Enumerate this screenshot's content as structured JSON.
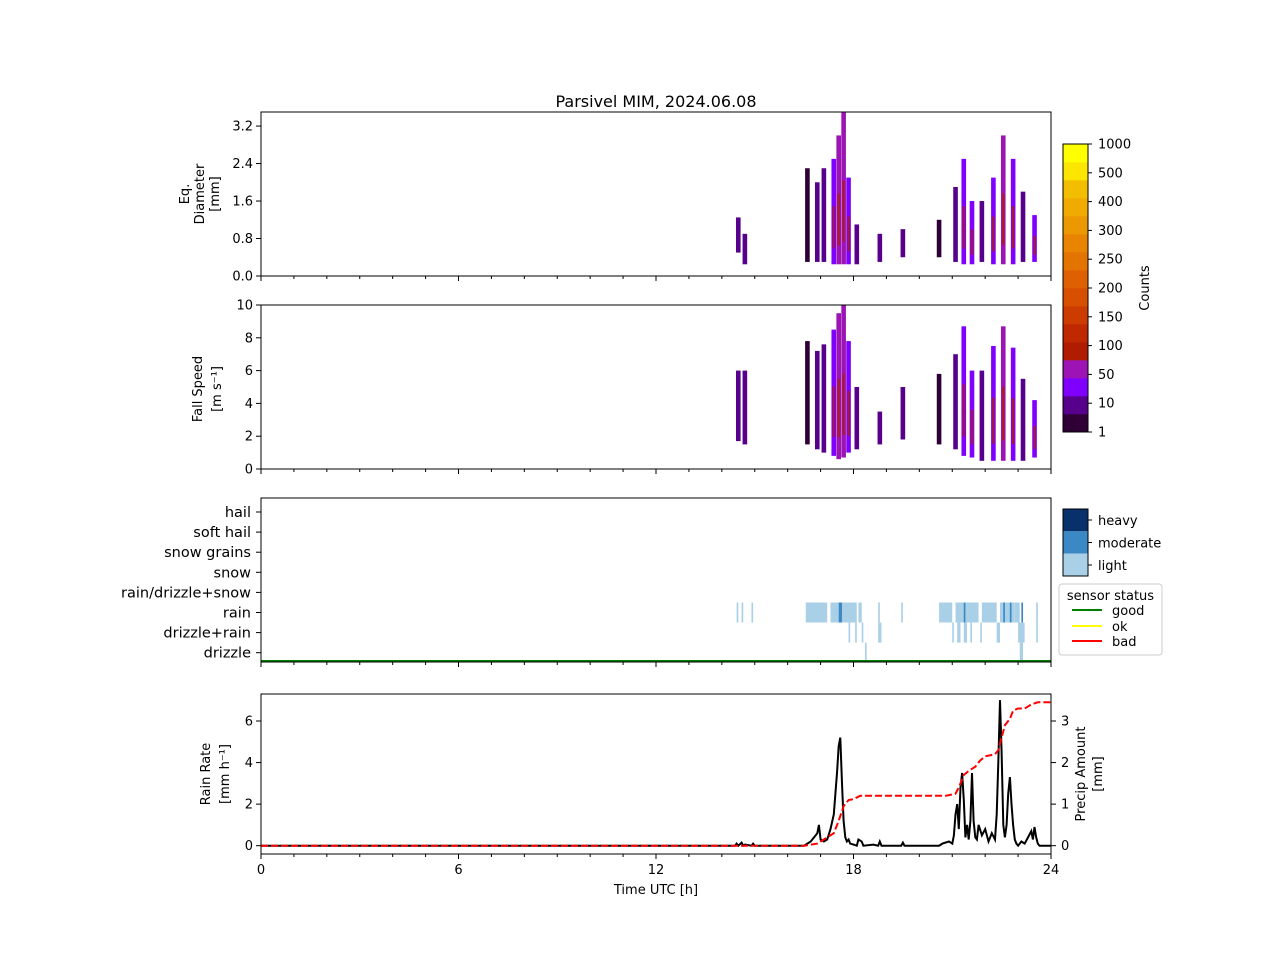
{
  "title": "Parsivel MIM, 2024.06.08",
  "time_axis": {
    "label": "Time UTC [h]",
    "ticks": [
      "0",
      "6",
      "12",
      "18",
      "24"
    ],
    "range": [
      0,
      24
    ]
  },
  "panels": {
    "diameter": {
      "ylabel_lines": [
        "Eq.",
        "Diameter",
        "[mm]"
      ],
      "ticks": [
        "0.0",
        "0.8",
        "1.6",
        "2.4",
        "3.2"
      ],
      "ylim": [
        0,
        3.5
      ]
    },
    "fallspeed": {
      "ylabel_lines": [
        "Fall Speed",
        "[m s⁻¹]"
      ],
      "ticks": [
        "0",
        "2",
        "4",
        "6",
        "8",
        "10"
      ],
      "ylim": [
        0,
        10
      ]
    },
    "type": {
      "categories": [
        "hail",
        "soft hail",
        "snow grains",
        "snow",
        "rain/drizzle+snow",
        "rain",
        "drizzle+rain",
        "drizzle"
      ]
    },
    "rain": {
      "ylabel_lines": [
        "Rain Rate",
        "[mm h⁻¹]"
      ],
      "ticks": [
        "0",
        "2",
        "4",
        "6"
      ],
      "ylim": [
        -0.4,
        7.3
      ],
      "y2label_lines": [
        "Precip Amount",
        "[mm]"
      ],
      "y2ticks": [
        "0",
        "1",
        "2",
        "3"
      ],
      "y2lim": [
        -0.2,
        3.65
      ]
    }
  },
  "colorbar_counts": {
    "label": "Counts",
    "tick_labels": [
      "1",
      "10",
      "50",
      "100",
      "150",
      "200",
      "250",
      "300",
      "400",
      "500",
      "1000"
    ]
  },
  "intensity": {
    "labels": [
      "heavy",
      "moderate",
      "light"
    ],
    "colors": [
      "#08306b",
      "#3a88c4",
      "#a9d0e7"
    ]
  },
  "sensor_status": {
    "title": "sensor status",
    "items": [
      {
        "label": "good",
        "color": "#008000"
      },
      {
        "label": "ok",
        "color": "#ffff00"
      },
      {
        "label": "bad",
        "color": "#ff0000"
      }
    ]
  },
  "colors": {
    "counts_scale": [
      "#2e0036",
      "#57008c",
      "#8000ff",
      "#9c14b4",
      "#b01c00",
      "#c02800",
      "#cc3c00",
      "#d65000",
      "#de6000",
      "#e47400",
      "#e88400",
      "#ec9800",
      "#f0aa00",
      "#f4be00",
      "#fce600",
      "#ffff00"
    ],
    "rain_rate": "#000000",
    "precip_amount": "#ff0000",
    "status_line": "#008000"
  },
  "chart_data": [
    {
      "type": "heatmap",
      "name": "diameter-histogram",
      "x_unit": "h",
      "ylabel": "Eq. Diameter [mm]",
      "columns": [
        {
          "x": 14.5,
          "lo": 0.5,
          "hi": 1.25,
          "c": 1
        },
        {
          "x": 14.7,
          "lo": 0.25,
          "hi": 0.9,
          "c": 1
        },
        {
          "x": 16.6,
          "lo": 0.3,
          "hi": 2.3,
          "c": 0
        },
        {
          "x": 16.9,
          "lo": 0.3,
          "hi": 2.0,
          "c": 1
        },
        {
          "x": 17.1,
          "lo": 0.3,
          "hi": 2.3,
          "c": 1
        },
        {
          "x": 17.4,
          "lo": 0.25,
          "hi": 2.5,
          "c": 2
        },
        {
          "x": 17.55,
          "lo": 0.25,
          "hi": 3.0,
          "c": 3
        },
        {
          "x": 17.7,
          "lo": 0.25,
          "hi": 3.5,
          "c": 3
        },
        {
          "x": 17.85,
          "lo": 0.25,
          "hi": 2.1,
          "c": 2
        },
        {
          "x": 18.1,
          "lo": 0.25,
          "hi": 1.1,
          "c": 1
        },
        {
          "x": 18.8,
          "lo": 0.3,
          "hi": 0.9,
          "c": 1
        },
        {
          "x": 19.5,
          "lo": 0.4,
          "hi": 1.0,
          "c": 1
        },
        {
          "x": 20.6,
          "lo": 0.4,
          "hi": 1.2,
          "c": 0
        },
        {
          "x": 21.1,
          "lo": 0.3,
          "hi": 1.9,
          "c": 1
        },
        {
          "x": 21.35,
          "lo": 0.25,
          "hi": 2.5,
          "c": 2
        },
        {
          "x": 21.6,
          "lo": 0.25,
          "hi": 1.6,
          "c": 2
        },
        {
          "x": 21.9,
          "lo": 0.3,
          "hi": 1.6,
          "c": 1
        },
        {
          "x": 22.25,
          "lo": 0.25,
          "hi": 2.1,
          "c": 2
        },
        {
          "x": 22.55,
          "lo": 0.25,
          "hi": 3.0,
          "c": 3
        },
        {
          "x": 22.85,
          "lo": 0.25,
          "hi": 2.5,
          "c": 2
        },
        {
          "x": 23.15,
          "lo": 0.3,
          "hi": 1.8,
          "c": 1
        },
        {
          "x": 23.5,
          "lo": 0.3,
          "hi": 1.3,
          "c": 2
        }
      ]
    },
    {
      "type": "heatmap",
      "name": "fallspeed-histogram",
      "x_unit": "h",
      "ylabel": "Fall Speed [m s-1]",
      "columns": [
        {
          "x": 14.5,
          "lo": 1.7,
          "hi": 6.0,
          "c": 1
        },
        {
          "x": 14.7,
          "lo": 1.5,
          "hi": 6.0,
          "c": 1
        },
        {
          "x": 16.6,
          "lo": 1.5,
          "hi": 7.8,
          "c": 0
        },
        {
          "x": 16.9,
          "lo": 1.2,
          "hi": 7.2,
          "c": 1
        },
        {
          "x": 17.1,
          "lo": 1.0,
          "hi": 7.6,
          "c": 1
        },
        {
          "x": 17.4,
          "lo": 0.8,
          "hi": 8.5,
          "c": 2
        },
        {
          "x": 17.55,
          "lo": 0.6,
          "hi": 9.5,
          "c": 3
        },
        {
          "x": 17.7,
          "lo": 0.7,
          "hi": 10.0,
          "c": 3
        },
        {
          "x": 17.85,
          "lo": 1.0,
          "hi": 7.8,
          "c": 2
        },
        {
          "x": 18.1,
          "lo": 1.2,
          "hi": 5.0,
          "c": 1
        },
        {
          "x": 18.8,
          "lo": 1.5,
          "hi": 3.5,
          "c": 1
        },
        {
          "x": 19.5,
          "lo": 1.8,
          "hi": 5.0,
          "c": 1
        },
        {
          "x": 20.6,
          "lo": 1.5,
          "hi": 5.8,
          "c": 0
        },
        {
          "x": 21.1,
          "lo": 1.2,
          "hi": 7.0,
          "c": 1
        },
        {
          "x": 21.35,
          "lo": 0.8,
          "hi": 8.7,
          "c": 2
        },
        {
          "x": 21.6,
          "lo": 0.7,
          "hi": 6.0,
          "c": 2
        },
        {
          "x": 21.9,
          "lo": 0.5,
          "hi": 6.0,
          "c": 1
        },
        {
          "x": 22.25,
          "lo": 0.5,
          "hi": 7.5,
          "c": 2
        },
        {
          "x": 22.55,
          "lo": 0.5,
          "hi": 8.7,
          "c": 3
        },
        {
          "x": 22.85,
          "lo": 0.5,
          "hi": 7.4,
          "c": 2
        },
        {
          "x": 23.15,
          "lo": 0.5,
          "hi": 5.5,
          "c": 1
        },
        {
          "x": 23.5,
          "lo": 0.7,
          "hi": 4.2,
          "c": 2
        }
      ]
    },
    {
      "type": "heatmap",
      "name": "precip-type",
      "x_unit": "h",
      "segments": [
        {
          "cat": "rain",
          "start": 14.45,
          "end": 14.5,
          "level": "light"
        },
        {
          "cat": "rain",
          "start": 14.6,
          "end": 14.65,
          "level": "light"
        },
        {
          "cat": "rain",
          "start": 14.9,
          "end": 14.95,
          "level": "light"
        },
        {
          "cat": "rain",
          "start": 16.55,
          "end": 17.2,
          "level": "light"
        },
        {
          "cat": "rain",
          "start": 17.3,
          "end": 17.55,
          "level": "light"
        },
        {
          "cat": "rain",
          "start": 17.55,
          "end": 17.65,
          "level": "moderate"
        },
        {
          "cat": "rain",
          "start": 17.65,
          "end": 18.1,
          "level": "light"
        },
        {
          "cat": "rain",
          "start": 18.15,
          "end": 18.25,
          "level": "light"
        },
        {
          "cat": "rain",
          "start": 18.75,
          "end": 18.8,
          "level": "light"
        },
        {
          "cat": "rain",
          "start": 19.45,
          "end": 19.5,
          "level": "light"
        },
        {
          "cat": "rain",
          "start": 20.6,
          "end": 21.0,
          "level": "light"
        },
        {
          "cat": "rain",
          "start": 21.1,
          "end": 21.8,
          "level": "light"
        },
        {
          "cat": "rain",
          "start": 21.35,
          "end": 21.4,
          "level": "moderate"
        },
        {
          "cat": "rain",
          "start": 21.9,
          "end": 22.35,
          "level": "light"
        },
        {
          "cat": "rain",
          "start": 22.45,
          "end": 22.9,
          "level": "light"
        },
        {
          "cat": "rain",
          "start": 22.55,
          "end": 22.6,
          "level": "moderate"
        },
        {
          "cat": "rain",
          "start": 22.75,
          "end": 22.8,
          "level": "moderate"
        },
        {
          "cat": "rain",
          "start": 22.9,
          "end": 23.05,
          "level": "light"
        },
        {
          "cat": "rain",
          "start": 23.1,
          "end": 23.15,
          "level": "moderate"
        },
        {
          "cat": "rain",
          "start": 23.55,
          "end": 23.6,
          "level": "light"
        },
        {
          "cat": "drizzle+rain",
          "start": 17.85,
          "end": 17.9,
          "level": "light"
        },
        {
          "cat": "drizzle+rain",
          "start": 18.05,
          "end": 18.1,
          "level": "light"
        },
        {
          "cat": "drizzle+rain",
          "start": 18.25,
          "end": 18.3,
          "level": "light"
        },
        {
          "cat": "drizzle+rain",
          "start": 18.75,
          "end": 18.85,
          "level": "light"
        },
        {
          "cat": "drizzle+rain",
          "start": 21.0,
          "end": 21.05,
          "level": "light"
        },
        {
          "cat": "drizzle+rain",
          "start": 21.15,
          "end": 21.25,
          "level": "light"
        },
        {
          "cat": "drizzle+rain",
          "start": 21.35,
          "end": 21.45,
          "level": "light"
        },
        {
          "cat": "drizzle+rain",
          "start": 21.55,
          "end": 21.6,
          "level": "light"
        },
        {
          "cat": "drizzle+rain",
          "start": 21.85,
          "end": 21.9,
          "level": "light"
        },
        {
          "cat": "drizzle+rain",
          "start": 22.35,
          "end": 22.45,
          "level": "light"
        },
        {
          "cat": "drizzle+rain",
          "start": 23.0,
          "end": 23.2,
          "level": "light"
        },
        {
          "cat": "drizzle+rain",
          "start": 23.55,
          "end": 23.6,
          "level": "light"
        },
        {
          "cat": "drizzle",
          "start": 18.35,
          "end": 18.4,
          "level": "light"
        },
        {
          "cat": "drizzle",
          "start": 23.05,
          "end": 23.15,
          "level": "light"
        }
      ],
      "sensor_status_series": {
        "start": 0,
        "end": 24,
        "status": "good"
      }
    },
    {
      "type": "line",
      "name": "rain-rate",
      "series": [
        {
          "ylabel": "Rain Rate [mm h-1]",
          "x": [
            0,
            14.4,
            14.45,
            14.5,
            14.6,
            14.65,
            14.7,
            14.9,
            14.95,
            15.0,
            16.5,
            16.7,
            16.8,
            16.9,
            16.95,
            17.0,
            17.1,
            17.2,
            17.3,
            17.4,
            17.5,
            17.55,
            17.6,
            17.65,
            17.7,
            17.75,
            17.8,
            17.85,
            17.9,
            18.0,
            18.1,
            18.15,
            18.25,
            18.3,
            18.6,
            18.75,
            18.8,
            18.85,
            19.45,
            19.5,
            19.55,
            20.6,
            20.7,
            20.9,
            21.0,
            21.05,
            21.1,
            21.15,
            21.2,
            21.25,
            21.3,
            21.35,
            21.4,
            21.45,
            21.5,
            21.55,
            21.6,
            21.65,
            21.7,
            21.75,
            21.8,
            21.9,
            22.0,
            22.1,
            22.2,
            22.3,
            22.35,
            22.4,
            22.45,
            22.5,
            22.55,
            22.6,
            22.65,
            22.7,
            22.75,
            22.8,
            22.85,
            22.9,
            22.95,
            23.0,
            23.1,
            23.2,
            23.3,
            23.4,
            23.45,
            23.5,
            23.55,
            23.6,
            23.65,
            24.0
          ],
          "y": [
            0,
            0,
            0.1,
            0.0,
            0.15,
            0.0,
            0.05,
            0.0,
            0.1,
            0,
            0,
            0.2,
            0.4,
            0.6,
            1.0,
            0.3,
            0.2,
            0.3,
            0.8,
            1.5,
            3.5,
            4.8,
            5.2,
            3.0,
            1.2,
            0.4,
            0.2,
            0.3,
            0.1,
            0.05,
            0.0,
            0.3,
            0.2,
            0.0,
            0.05,
            0.0,
            0.2,
            0.0,
            0.0,
            0.15,
            0.0,
            0,
            0.1,
            0.2,
            0.1,
            0.5,
            1.5,
            2.0,
            0.8,
            2.8,
            3.5,
            2.2,
            0.4,
            1.0,
            0.3,
            1.2,
            3.5,
            1.2,
            0.4,
            0.3,
            1.0,
            0.5,
            0.8,
            0.2,
            0.6,
            0.3,
            1.5,
            4.0,
            7.0,
            4.5,
            1.0,
            0.4,
            1.0,
            2.5,
            3.3,
            2.0,
            1.0,
            0.3,
            0.1,
            0.0,
            0.2,
            0.1,
            0.4,
            0.7,
            0.3,
            0.9,
            0.4,
            0.1,
            0.0,
            0
          ]
        },
        {
          "ylabel": "Precip Amount [mm]",
          "axis": "right",
          "x": [
            0,
            16.5,
            16.9,
            17.2,
            17.4,
            17.55,
            17.7,
            17.85,
            18.0,
            18.2,
            19.0,
            20.0,
            20.8,
            21.1,
            21.2,
            21.35,
            21.5,
            21.7,
            21.85,
            22.0,
            22.3,
            22.4,
            22.5,
            22.6,
            22.75,
            22.85,
            23.0,
            23.2,
            23.4,
            23.6,
            24.0
          ],
          "y": [
            0,
            0,
            0.05,
            0.2,
            0.3,
            0.6,
            0.95,
            1.1,
            1.12,
            1.2,
            1.2,
            1.2,
            1.2,
            1.25,
            1.4,
            1.7,
            1.8,
            1.9,
            2.05,
            2.15,
            2.2,
            2.3,
            2.6,
            2.9,
            3.05,
            3.25,
            3.3,
            3.3,
            3.4,
            3.45,
            3.45
          ]
        }
      ]
    }
  ]
}
